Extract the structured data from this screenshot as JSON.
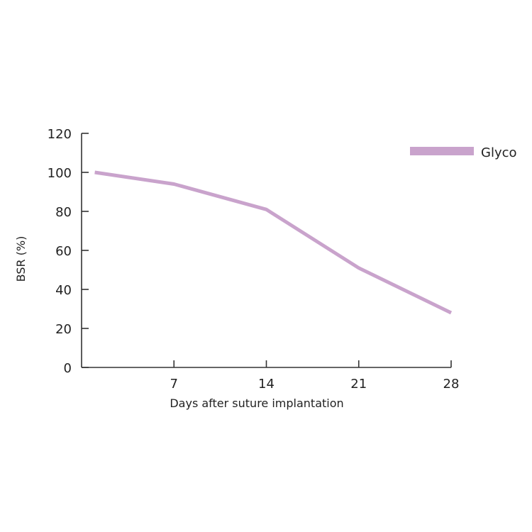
{
  "chart_data": {
    "type": "line",
    "title": "",
    "xlabel": "Days after suture implantation",
    "ylabel": "BSR (%)",
    "xlim": [
      0,
      28
    ],
    "ylim": [
      0,
      120
    ],
    "x_ticks": [
      7,
      14,
      21,
      28
    ],
    "y_ticks": [
      0,
      20,
      40,
      60,
      80,
      100,
      120
    ],
    "grid": false,
    "legend": {
      "position": "top-right"
    },
    "series": [
      {
        "name": "Glyco",
        "color": "#c9a3cc",
        "x": [
          1,
          7,
          14,
          21,
          28
        ],
        "y": [
          100,
          94,
          81,
          51,
          28
        ]
      }
    ]
  }
}
